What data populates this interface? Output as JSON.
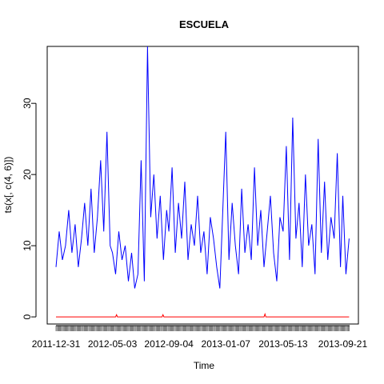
{
  "chart_data": {
    "type": "line",
    "title": "ESCUELA",
    "xlabel": "Time",
    "ylabel": "ts(x[, c(4, 6)])",
    "ylim": [
      -1,
      38
    ],
    "yticks": [
      0,
      10,
      20,
      30
    ],
    "grid": false,
    "legend": "none",
    "x_tick_labels": [
      "2011-12-31",
      "2012-05-03",
      "2012-09-04",
      "2013-01-07",
      "2013-05-13",
      "2013-09-21"
    ],
    "x_range": [
      "2011-12-31",
      "2013-10-06"
    ],
    "series": [
      {
        "color": "#0000ff",
        "x": [
          "2011-12-31",
          "2012-01-07",
          "2012-01-14",
          "2012-01-21",
          "2012-01-28",
          "2012-02-04",
          "2012-02-11",
          "2012-02-18",
          "2012-02-25",
          "2012-03-03",
          "2012-03-10",
          "2012-03-17",
          "2012-03-24",
          "2012-03-31",
          "2012-04-07",
          "2012-04-14",
          "2012-04-21",
          "2012-04-28",
          "2012-05-03",
          "2012-05-10",
          "2012-05-17",
          "2012-05-24",
          "2012-05-31",
          "2012-06-07",
          "2012-06-14",
          "2012-06-21",
          "2012-06-28",
          "2012-07-05",
          "2012-07-12",
          "2012-07-19",
          "2012-07-26",
          "2012-08-02",
          "2012-08-09",
          "2012-08-16",
          "2012-08-23",
          "2012-08-30",
          "2012-09-04",
          "2012-09-11",
          "2012-09-18",
          "2012-09-25",
          "2012-10-02",
          "2012-10-09",
          "2012-10-16",
          "2012-10-23",
          "2012-10-30",
          "2012-11-06",
          "2012-11-13",
          "2012-11-20",
          "2012-11-27",
          "2012-12-04",
          "2012-12-11",
          "2012-12-18",
          "2012-12-25",
          "2013-01-07",
          "2013-01-14",
          "2013-01-21",
          "2013-01-28",
          "2013-02-04",
          "2013-02-11",
          "2013-02-18",
          "2013-02-25",
          "2013-03-04",
          "2013-03-11",
          "2013-03-18",
          "2013-03-25",
          "2013-04-01",
          "2013-04-08",
          "2013-04-15",
          "2013-04-22",
          "2013-04-29",
          "2013-05-06",
          "2013-05-13",
          "2013-05-20",
          "2013-05-27",
          "2013-06-03",
          "2013-06-10",
          "2013-06-17",
          "2013-06-24",
          "2013-07-01",
          "2013-07-08",
          "2013-07-15",
          "2013-07-22",
          "2013-07-29",
          "2013-08-05",
          "2013-08-12",
          "2013-08-19",
          "2013-08-26",
          "2013-09-02",
          "2013-09-09",
          "2013-09-16",
          "2013-09-21",
          "2013-09-28",
          "2013-10-05"
        ],
        "y": [
          7,
          12,
          8,
          10,
          15,
          9,
          13,
          7,
          11,
          16,
          10,
          18,
          9,
          14,
          22,
          12,
          26,
          10,
          9,
          6,
          12,
          8,
          10,
          5,
          9,
          4,
          6,
          22,
          5,
          38,
          14,
          20,
          11,
          17,
          8,
          15,
          12,
          21,
          9,
          16,
          11,
          19,
          8,
          13,
          10,
          17,
          9,
          12,
          6,
          14,
          11,
          7,
          4,
          26,
          8,
          16,
          10,
          6,
          18,
          9,
          13,
          8,
          21,
          10,
          15,
          7,
          12,
          17,
          9,
          5,
          14,
          12,
          24,
          8,
          28,
          11,
          16,
          7,
          20,
          10,
          13,
          6,
          25,
          9,
          19,
          8,
          14,
          11,
          23,
          7,
          17,
          6,
          11
        ]
      },
      {
        "color": "#ff0000",
        "x": [
          "2011-12-31",
          "2012-02-25",
          "2012-05-10",
          "2012-05-12",
          "2012-05-14",
          "2012-07-19",
          "2012-08-20",
          "2012-08-22",
          "2012-08-24",
          "2012-11-06",
          "2013-01-07",
          "2013-04-01",
          "2013-04-03",
          "2013-04-05",
          "2013-06-17",
          "2013-08-19",
          "2013-10-05"
        ],
        "y": [
          0,
          0,
          0,
          0.3,
          0,
          0,
          0,
          0.3,
          0,
          0,
          0,
          0,
          0.4,
          0,
          0,
          0,
          0
        ]
      }
    ]
  }
}
